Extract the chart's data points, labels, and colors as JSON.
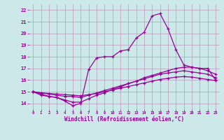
{
  "xlabel": "Windchill (Refroidissement éolien,°C)",
  "background_color": "#cce8e8",
  "line_color": "#990099",
  "grid_color": "#bb99bb",
  "xlim": [
    -0.5,
    23.5
  ],
  "ylim": [
    13.5,
    22.5
  ],
  "xticks": [
    0,
    1,
    2,
    3,
    4,
    5,
    6,
    7,
    8,
    9,
    10,
    11,
    12,
    13,
    14,
    15,
    16,
    17,
    18,
    19,
    20,
    21,
    22,
    23
  ],
  "yticks": [
    14,
    15,
    16,
    17,
    18,
    19,
    20,
    21,
    22
  ],
  "series": [
    {
      "x": [
        0,
        1,
        2,
        3,
        4,
        5,
        6,
        7,
        8,
        9,
        10,
        11,
        12,
        13,
        14,
        15,
        16,
        17,
        18,
        19,
        20,
        21,
        22,
        23
      ],
      "y": [
        15.0,
        14.7,
        14.6,
        14.5,
        14.2,
        13.8,
        14.0,
        16.9,
        17.9,
        18.0,
        18.0,
        18.5,
        18.6,
        19.6,
        20.1,
        21.5,
        21.7,
        20.4,
        18.6,
        17.3,
        17.1,
        17.0,
        17.0,
        16.0
      ]
    },
    {
      "x": [
        0,
        1,
        2,
        3,
        4,
        5,
        6,
        7,
        8,
        9,
        10,
        11,
        12,
        13,
        14,
        15,
        16,
        17,
        18,
        19,
        20,
        21,
        22,
        23
      ],
      "y": [
        15.0,
        14.8,
        14.6,
        14.5,
        14.3,
        14.1,
        14.1,
        14.4,
        14.7,
        14.9,
        15.2,
        15.4,
        15.7,
        15.9,
        16.2,
        16.4,
        16.6,
        16.8,
        17.0,
        17.1,
        17.1,
        17.0,
        16.8,
        16.5
      ]
    },
    {
      "x": [
        0,
        1,
        2,
        3,
        4,
        5,
        6,
        7,
        8,
        9,
        10,
        11,
        12,
        13,
        14,
        15,
        16,
        17,
        18,
        19,
        20,
        21,
        22,
        23
      ],
      "y": [
        15.0,
        14.9,
        14.8,
        14.7,
        14.6,
        14.6,
        14.5,
        14.7,
        14.9,
        15.1,
        15.3,
        15.5,
        15.7,
        15.9,
        16.1,
        16.3,
        16.5,
        16.6,
        16.7,
        16.8,
        16.7,
        16.6,
        16.5,
        16.2
      ]
    },
    {
      "x": [
        0,
        1,
        2,
        3,
        4,
        5,
        6,
        7,
        8,
        9,
        10,
        11,
        12,
        13,
        14,
        15,
        16,
        17,
        18,
        19,
        20,
        21,
        22,
        23
      ],
      "y": [
        15.0,
        14.9,
        14.85,
        14.8,
        14.75,
        14.7,
        14.65,
        14.75,
        14.85,
        15.0,
        15.15,
        15.3,
        15.45,
        15.6,
        15.75,
        15.9,
        16.05,
        16.15,
        16.25,
        16.3,
        16.25,
        16.15,
        16.05,
        15.95
      ]
    }
  ]
}
